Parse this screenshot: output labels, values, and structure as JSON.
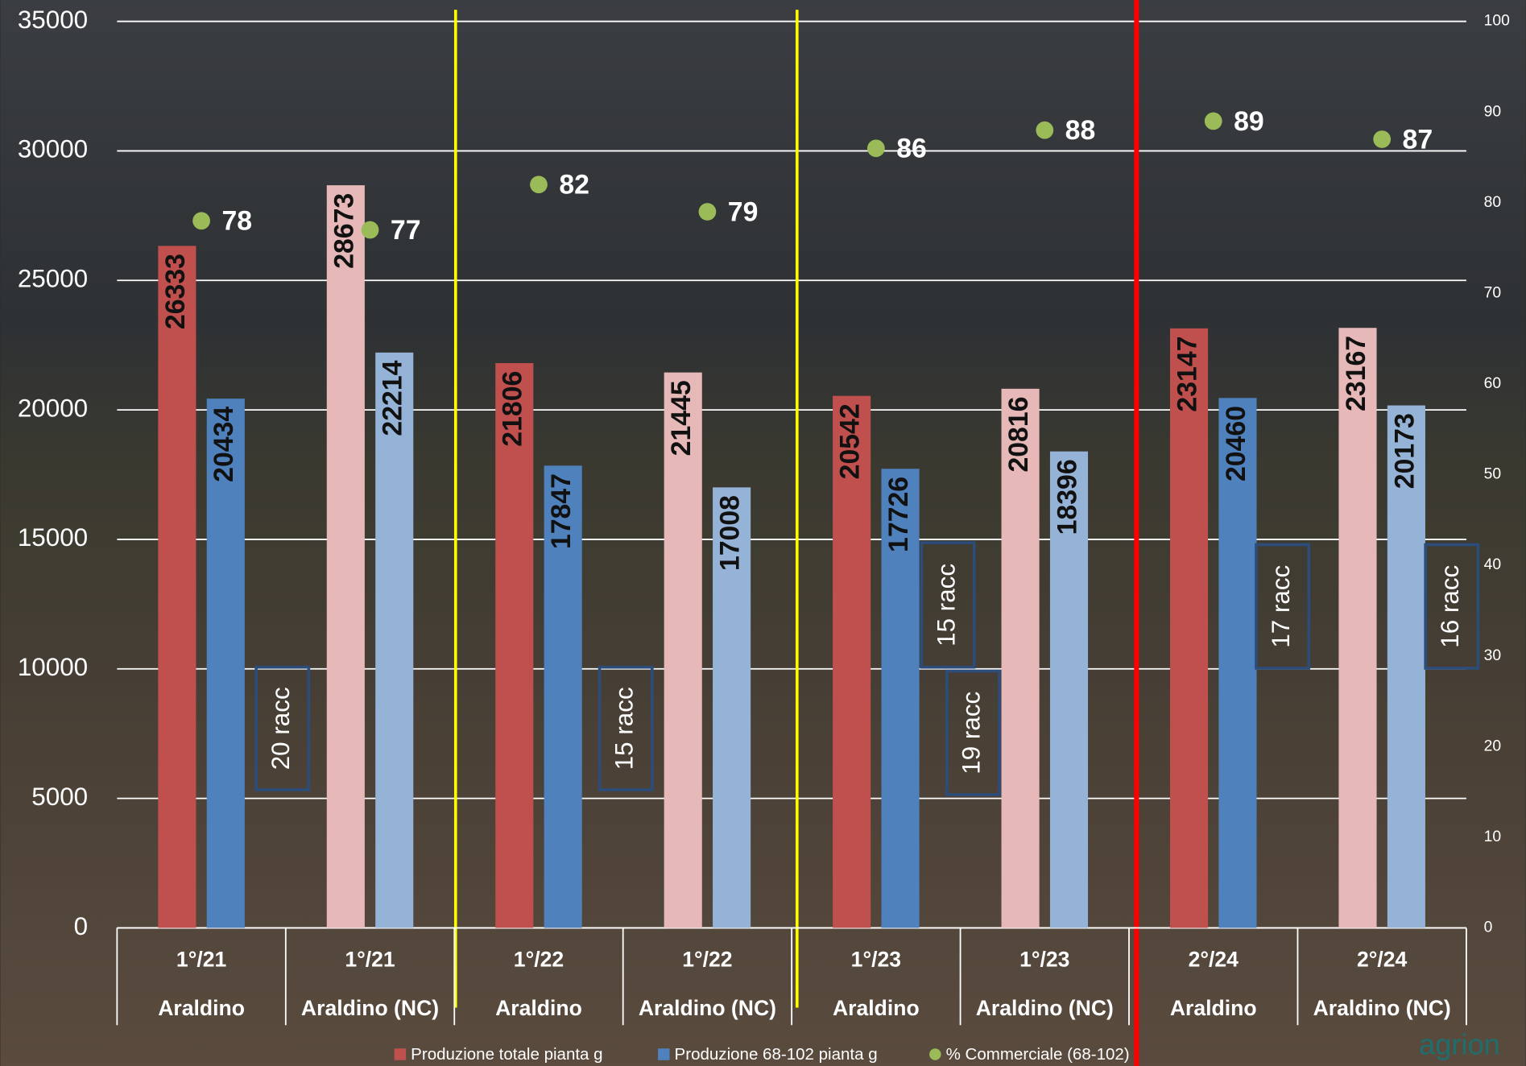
{
  "chart_data": {
    "type": "bar",
    "categories": [
      "1°/21",
      "1°/21",
      "1°/22",
      "1°/22",
      "1°/23",
      "1°/23",
      "2°/24",
      "2°/24"
    ],
    "subcategories": [
      "Araldino",
      "Araldino (NC)",
      "Araldino",
      "Araldino (NC)",
      "Araldino",
      "Araldino (NC)",
      "Araldino",
      "Araldino (NC)"
    ],
    "series": [
      {
        "name": "Produzione totale pianta g",
        "color": "#c0504d",
        "point_colors": [
          "#c0504d",
          "#e6b9b8",
          "#c0504d",
          "#e6b9b8",
          "#c0504d",
          "#e6b9b8",
          "#c0504d",
          "#e6b9b8"
        ],
        "values": [
          26333,
          28673,
          21806,
          21445,
          20542,
          20816,
          23147,
          23167
        ]
      },
      {
        "name": "Produzione 68-102 pianta g",
        "color": "#4f81bd",
        "point_colors": [
          "#4f81bd",
          "#95b3d7",
          "#4f81bd",
          "#95b3d7",
          "#4f81bd",
          "#95b3d7",
          "#4f81bd",
          "#95b3d7"
        ],
        "values": [
          20434,
          22214,
          17847,
          17008,
          17726,
          18396,
          20460,
          20173
        ]
      },
      {
        "name": "% Commerciale (68-102)",
        "color": "#9bbb59",
        "axis": "y2",
        "values": [
          78,
          77,
          82,
          79,
          86,
          88,
          89,
          87
        ]
      }
    ],
    "ylim": [
      0,
      35000
    ],
    "yticks": [
      0,
      5000,
      10000,
      15000,
      20000,
      25000,
      30000,
      35000
    ],
    "y2lim": [
      0,
      100
    ],
    "y2ticks": [
      0,
      10,
      20,
      30,
      40,
      50,
      60,
      70,
      80,
      90,
      100
    ],
    "grid": true,
    "annotations": [
      "20 racc",
      "15 racc",
      "15 racc",
      "19 racc",
      "17 racc",
      "16 racc"
    ],
    "watermark": "agrion"
  }
}
